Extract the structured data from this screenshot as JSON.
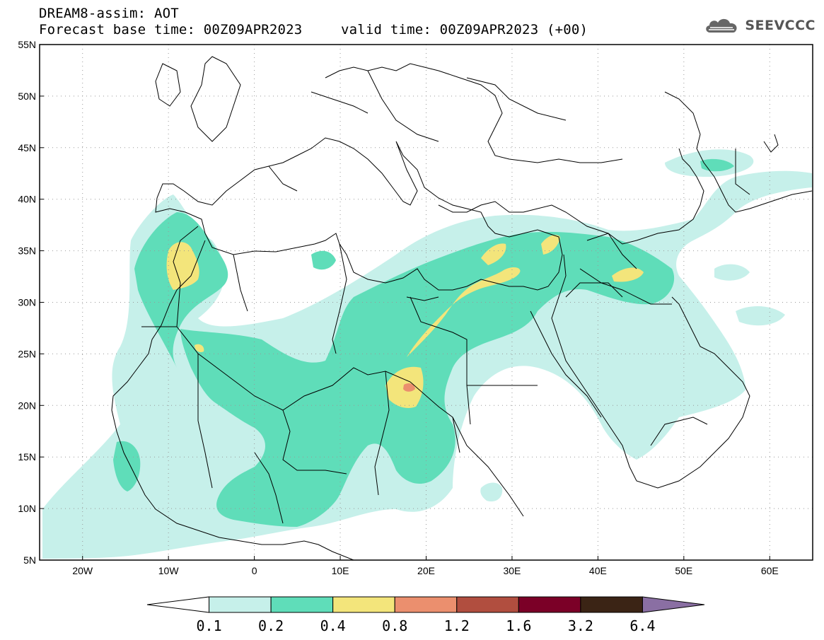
{
  "header": {
    "title_line1": "DREAM8-assim: AOT",
    "base_time": "Forecast base time: 00Z09APR2023",
    "valid_time": "valid time: 00Z09APR2023 (+00)"
  },
  "logo": {
    "text": "SEEVCCC",
    "icon": "cloud-icon"
  },
  "map": {
    "lat_labels": [
      "55N",
      "50N",
      "45N",
      "40N",
      "35N",
      "30N",
      "25N",
      "20N",
      "15N",
      "10N",
      "5N"
    ],
    "lon_labels": [
      "20W",
      "10W",
      "0",
      "10E",
      "20E",
      "30E",
      "40E",
      "50E",
      "60E"
    ],
    "lat_range": [
      5,
      55
    ],
    "lon_range": [
      -25,
      65
    ],
    "grid": "dotted"
  },
  "colorbar": {
    "labels": [
      "0.1",
      "0.2",
      "0.4",
      "0.8",
      "1.2",
      "1.6",
      "3.2",
      "6.4"
    ],
    "colors": [
      "#ffffff",
      "#c6f0ea",
      "#5fddb9",
      "#f3e57b",
      "#eb8f6e",
      "#b14e3f",
      "#7b0027",
      "#3b2415",
      "#8a6fa3"
    ]
  }
}
